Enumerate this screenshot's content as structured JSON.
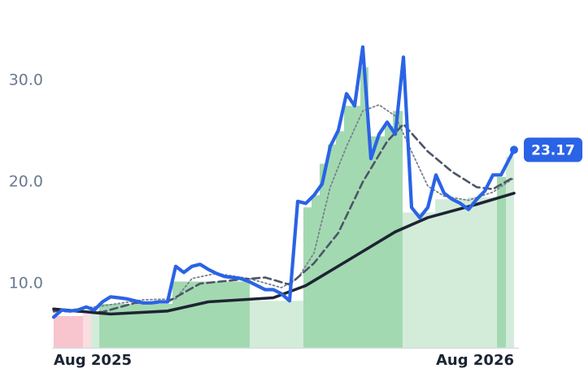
{
  "chart_data": {
    "type": "line",
    "xlim": [
      0,
      56.6
    ],
    "ylim": [
      3.68,
      37.92
    ],
    "yticks": [
      {
        "value": 10,
        "label": "10.0"
      },
      {
        "value": 20,
        "label": "20.0"
      },
      {
        "value": 30,
        "label": "30.0"
      }
    ],
    "xticks": [
      {
        "value": 0,
        "label": "Aug 2025"
      },
      {
        "value": 56.6,
        "label": "Aug 2026"
      }
    ],
    "bands": {
      "bins": [
        0,
        3.6,
        4.6,
        5.6,
        14.6,
        24.1,
        30.7,
        31.7,
        32.7,
        33.7,
        34.7,
        35.7,
        36.7,
        37.7,
        38.7,
        39.7,
        40.7,
        41.7,
        42.9,
        46.9,
        50.9,
        54.5,
        55.6,
        56.6
      ],
      "values": [
        6.8,
        7.0,
        7.2,
        8.0,
        10.2,
        8.3,
        17.5,
        18.7,
        21.8,
        23.7,
        25.0,
        27.5,
        27.5,
        31.3,
        24.5,
        24.5,
        25.5,
        27.0,
        17.0,
        18.3,
        18.5,
        20.5,
        22.5
      ],
      "colors": [
        "#f8c4cd",
        "#fbdde2",
        "#d3ecda",
        "#a3d9b1",
        "#a3d9b1",
        "#d3ecda",
        "#a3d9b1",
        "#a3d9b1",
        "#a3d9b1",
        "#a3d9b1",
        "#a3d9b1",
        "#a3d9b1",
        "#a3d9b1",
        "#a3d9b1",
        "#a3d9b1",
        "#a3d9b1",
        "#a3d9b1",
        "#a3d9b1",
        "#d3ecda",
        "#d3ecda",
        "#d3ecda",
        "#a3d9b1",
        "#d3ecda"
      ]
    },
    "series": [
      {
        "color": "#7a8090",
        "style": "dotted",
        "x": [
          0,
          6,
          11,
          15,
          17,
          20,
          24,
          28,
          30,
          32,
          34,
          36,
          38,
          40,
          42,
          44,
          46,
          48,
          51,
          54,
          56.6
        ],
        "values": [
          7.2,
          7.8,
          8.4,
          8.5,
          10.5,
          11.0,
          10.5,
          9.6,
          10.5,
          13.0,
          19.5,
          23.5,
          27.0,
          27.6,
          26.5,
          23.0,
          19.6,
          18.6,
          18.2,
          19.0,
          20.4
        ]
      },
      {
        "color": "#4b5568",
        "style": "dashed",
        "x": [
          0,
          6,
          10,
          14,
          18,
          23,
          26,
          29,
          32,
          35,
          38,
          41,
          43,
          46,
          49,
          52,
          54,
          56.6
        ],
        "values": [
          7.3,
          7.2,
          8.1,
          8.2,
          10.0,
          10.4,
          10.6,
          9.9,
          12.0,
          15.0,
          20.0,
          24.0,
          25.7,
          23.0,
          21.0,
          19.5,
          19.3,
          20.5
        ]
      },
      {
        "color": "#1e2433",
        "style": "solid",
        "x": [
          0,
          7,
          14,
          19,
          27,
          31,
          36,
          42,
          46,
          52,
          56.6
        ],
        "values": [
          7.5,
          7.0,
          7.3,
          8.2,
          8.6,
          9.8,
          12.2,
          15.1,
          16.5,
          17.8,
          18.9
        ]
      },
      {
        "color": "#2a63e6",
        "style": "price",
        "x": [
          0,
          1,
          2,
          3,
          4,
          5,
          6,
          7,
          8,
          9,
          10,
          11,
          12,
          13,
          14,
          15,
          16,
          17,
          18,
          19,
          20,
          21,
          22,
          23,
          24,
          25,
          26,
          27,
          28,
          29,
          30,
          31,
          32,
          33,
          34,
          35,
          36,
          37,
          38,
          39,
          40,
          41,
          42,
          43,
          44,
          45,
          46,
          47,
          48,
          49,
          50,
          51,
          52,
          53,
          54,
          55,
          56.6
        ],
        "values": [
          6.7,
          7.4,
          7.3,
          7.4,
          7.7,
          7.4,
          8.2,
          8.7,
          8.6,
          8.5,
          8.3,
          8.1,
          8.1,
          8.2,
          8.2,
          11.7,
          11.1,
          11.7,
          11.9,
          11.4,
          11.0,
          10.7,
          10.6,
          10.5,
          10.2,
          9.8,
          9.4,
          9.4,
          9.0,
          8.3,
          18.1,
          17.9,
          18.7,
          19.8,
          23.5,
          25.1,
          28.7,
          27.5,
          33.3,
          22.3,
          24.7,
          25.9,
          24.7,
          32.3,
          17.5,
          16.5,
          17.5,
          20.7,
          18.9,
          18.3,
          17.9,
          17.3,
          18.3,
          19.1,
          20.7,
          20.7,
          23.17
        ]
      }
    ]
  }
}
